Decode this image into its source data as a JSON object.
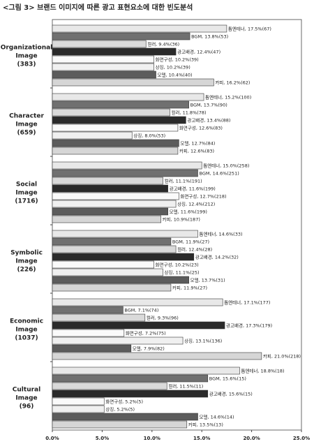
{
  "chart_data": {
    "type": "hbar_grouped",
    "title": "<그림 3> 브랜드 이미지에 따른 광고 표현요소에 대한 빈도분석",
    "categories": [
      [
        "Organizational",
        "Image",
        "(383)"
      ],
      [
        "Character",
        "Image",
        "(659)"
      ],
      [
        "Social",
        "Image",
        "(1716)"
      ],
      [
        "Symbolic",
        "Image",
        "(226)"
      ],
      [
        "Economic",
        "Image",
        "(1037)"
      ],
      [
        "Cultural",
        "Image",
        "(96)"
      ]
    ],
    "series": [
      {
        "color": "#e8e8e8",
        "values": [
          17.5,
          15.2,
          15.0,
          14.6,
          17.1,
          18.8
        ],
        "value_labels": [
          "톱엔테너, 17.5%(67)",
          "톱엔테너, 15.2%(100)",
          "톱엔테너, 15.0%(258)",
          "톱엔테너, 14.6%(33)",
          "톱엔테너, 17.1%(177)",
          "톱엔테너, 18.8%(18)"
        ]
      },
      {
        "color": "#707070",
        "values": [
          13.8,
          13.7,
          14.6,
          11.9,
          7.1,
          15.6
        ],
        "value_labels": [
          "BGM, 13.8%(53)",
          "BGM, 13.7%(90)",
          "BGM, 14.6%(251)",
          "BGM, 11.9%(27)",
          "BGM, 7.1%(74)",
          "BGM, 15.6%(15)"
        ]
      },
      {
        "color": "#dadada",
        "values": [
          9.4,
          11.8,
          11.1,
          12.4,
          9.3,
          11.5
        ],
        "value_labels": [
          "컬러, 9.4%(36)",
          "컬러, 11.8%(78)",
          "컬러, 11.1%(191)",
          "컬러, 12.4%(28)",
          "컬러, 9.3%(96)",
          "컬러, 11.5%(11)"
        ]
      },
      {
        "color": "#2a2a2a",
        "values": [
          12.4,
          13.4,
          11.6,
          14.2,
          17.3,
          15.6
        ],
        "value_labels": [
          "광고배경, 12.4%(47)",
          "광고배경, 13.4%(88)",
          "광고배경, 11.6%(199)",
          "광고배경, 14.2%(32)",
          "광고배경, 17.3%(179)",
          "광고배경, 15.6%(15)"
        ]
      },
      {
        "color": "#fafafa",
        "values": [
          10.2,
          12.6,
          12.7,
          10.2,
          7.2,
          5.2
        ],
        "value_labels": [
          "화면구성, 10.2%(39)",
          "화면구성, 12.6%(83)",
          "화면구성, 12.7%(218)",
          "화면구성, 10.2%(23)",
          "화면구성, 7.2%(75)",
          "화면구성, 5.2%(5)"
        ]
      },
      {
        "color": "#f0f0f0",
        "values": [
          10.2,
          8.0,
          12.4,
          11.1,
          13.1,
          5.2
        ],
        "value_labels": [
          "상징, 10.2%(39)",
          "상징, 8.0%(53)",
          "상징, 12.4%(212)",
          "상징, 11.1%(25)",
          "상징, 13.1%(136)",
          "상징, 5.2%(5)"
        ]
      },
      {
        "color": "#5c5c5c",
        "values": [
          10.4,
          12.7,
          11.6,
          13.7,
          7.9,
          14.6
        ],
        "value_labels": [
          "모델, 10.4%(40)",
          "모델, 12.7%(84)",
          "모델, 11.6%(199)",
          "모델, 13.7%(31)",
          "모델, 7.9%(82)",
          "모델, 14.6%(14)"
        ]
      },
      {
        "color": "#d6d6d6",
        "values": [
          16.2,
          12.6,
          10.9,
          11.9,
          21.0,
          13.5
        ],
        "value_labels": [
          "카피, 16.2%(62)",
          "카피, 12.6%(83)",
          "카피, 10.9%(187)",
          "카피, 11.9%(27)",
          "카피, 21.0%(218)",
          "카피, 13.5%(13)"
        ]
      }
    ],
    "xlim": [
      0,
      25
    ],
    "xticks": [
      {
        "value": 0,
        "label": "0.0%"
      },
      {
        "value": 5,
        "label": "5.0%"
      },
      {
        "value": 10,
        "label": "10.0%"
      },
      {
        "value": 15,
        "label": "15.0%"
      },
      {
        "value": 20,
        "label": "20.0%"
      },
      {
        "value": 25,
        "label": "25.0%"
      }
    ]
  }
}
